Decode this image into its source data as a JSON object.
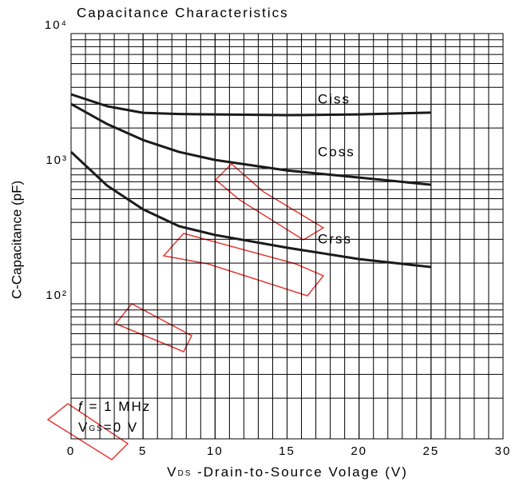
{
  "chart_data": {
    "type": "line",
    "title": "Capacitance Characteristics",
    "x_label": {
      "main": "V",
      "sub": "DS",
      "rest": " -Drain-to-Source Volage (V)"
    },
    "y_label": "C-Capacitance (pF)",
    "x": [
      0,
      2.5,
      5,
      7.5,
      10,
      15,
      20,
      25
    ],
    "series": [
      {
        "name": "Ciss",
        "color": "#1a1a1a",
        "values": [
          3550,
          2900,
          2590,
          2540,
          2520,
          2490,
          2520,
          2600
        ]
      },
      {
        "name": "Coss",
        "color": "#1a1a1a",
        "values": [
          3010,
          2140,
          1630,
          1330,
          1160,
          970,
          860,
          760
        ]
      },
      {
        "name": "Crss",
        "color": "#1a1a1a",
        "values": [
          1330,
          750,
          500,
          375,
          323,
          260,
          214,
          187
        ]
      }
    ],
    "xlim": [
      0,
      30
    ],
    "xticks": [
      0,
      5,
      10,
      15,
      20,
      25,
      30
    ],
    "ylim": [
      10,
      10000
    ],
    "yticks": [
      {
        "value": 100,
        "label": "10²"
      },
      {
        "value": 1000,
        "label": "10³"
      },
      {
        "value": 10000,
        "label": "10⁴"
      }
    ],
    "log_y": true,
    "grid": true,
    "annotations": [
      {
        "italic": "f",
        "text": " = 1 MHz"
      },
      {
        "main": "V",
        "sub": "GS",
        "rest": "=0 V"
      }
    ]
  }
}
